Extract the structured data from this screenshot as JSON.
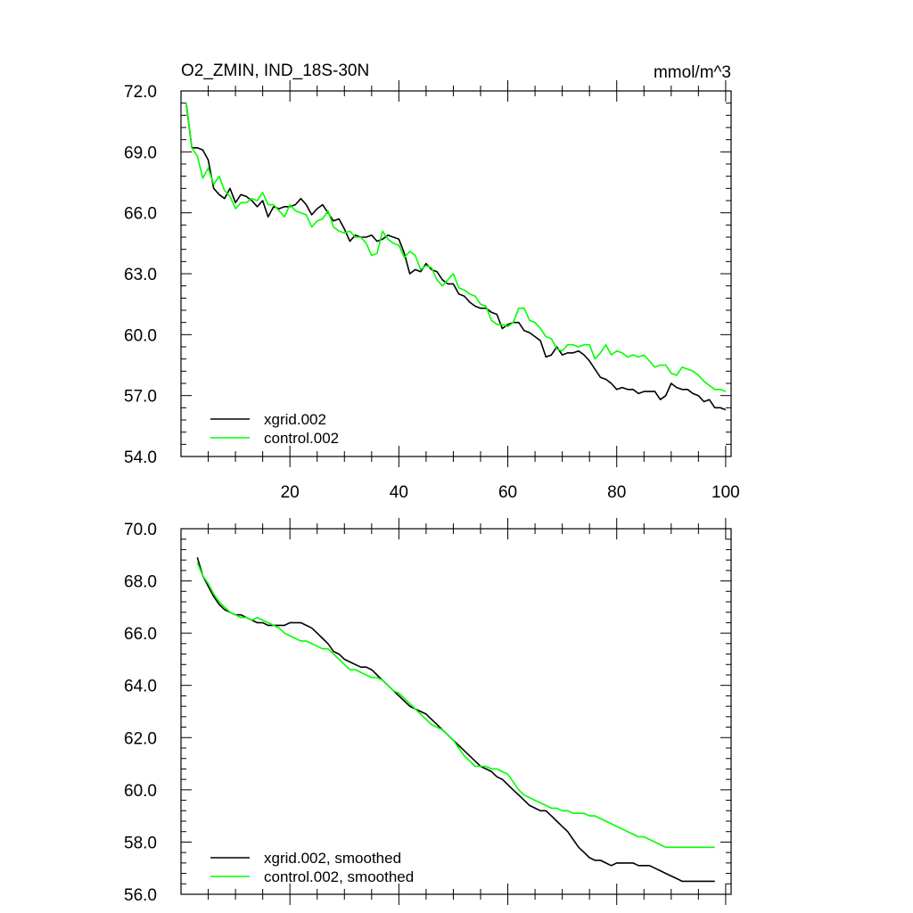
{
  "chart_data": [
    {
      "type": "line",
      "title": "O2_ZMIN, IND_18S-30N",
      "units": "mmol/m^3",
      "xlabel": "",
      "ylabel": "",
      "xlim": [
        0,
        101
      ],
      "ylim": [
        54.0,
        72.0
      ],
      "xticks": [
        20,
        40,
        60,
        80,
        100
      ],
      "xtick_labels": [
        "20",
        "40",
        "60",
        "80",
        "100"
      ],
      "yticks": [
        54,
        57,
        60,
        63,
        66,
        69,
        72
      ],
      "ytick_labels": [
        "54.0",
        "57.0",
        "60.0",
        "63.0",
        "66.0",
        "69.0",
        "72.0"
      ],
      "legend_position": "bottom-left",
      "grid": false,
      "series": [
        {
          "name": "xgrid.002",
          "color": "#000000",
          "x": [
            1,
            2,
            3,
            4,
            5,
            6,
            7,
            8,
            9,
            10,
            11,
            12,
            13,
            14,
            15,
            16,
            17,
            18,
            19,
            20,
            21,
            22,
            23,
            24,
            25,
            26,
            27,
            28,
            29,
            30,
            31,
            32,
            33,
            34,
            35,
            36,
            37,
            38,
            39,
            40,
            41,
            42,
            43,
            44,
            45,
            46,
            47,
            48,
            49,
            50,
            51,
            52,
            53,
            54,
            55,
            56,
            57,
            58,
            59,
            60,
            61,
            62,
            63,
            64,
            65,
            66,
            67,
            68,
            69,
            70,
            71,
            72,
            73,
            74,
            75,
            76,
            77,
            78,
            79,
            80,
            81,
            82,
            83,
            84,
            85,
            86,
            87,
            88,
            89,
            90,
            91,
            92,
            93,
            94,
            95,
            96,
            97,
            98,
            99,
            100
          ],
          "values": [
            71.3,
            69.2,
            69.2,
            69.1,
            68.6,
            67.2,
            66.9,
            66.7,
            67.2,
            66.5,
            66.9,
            66.8,
            66.6,
            66.3,
            66.6,
            65.8,
            66.3,
            66.2,
            66.3,
            66.3,
            66.4,
            66.7,
            66.4,
            65.9,
            66.2,
            66.4,
            66.0,
            65.6,
            65.7,
            65.2,
            64.6,
            64.9,
            64.8,
            64.8,
            64.9,
            64.6,
            64.7,
            64.9,
            64.8,
            64.7,
            64.0,
            63.0,
            63.2,
            63.1,
            63.5,
            63.2,
            63.1,
            62.7,
            62.5,
            62.5,
            62.0,
            61.9,
            61.6,
            61.4,
            61.3,
            61.3,
            61.1,
            61.0,
            60.3,
            60.5,
            60.6,
            60.6,
            60.2,
            60.1,
            59.9,
            59.7,
            58.9,
            59.0,
            59.4,
            59.0,
            59.1,
            59.1,
            59.2,
            59.0,
            58.7,
            58.3,
            57.9,
            57.8,
            57.6,
            57.3,
            57.4,
            57.3,
            57.3,
            57.1,
            57.2,
            57.2,
            57.2,
            56.8,
            57.0,
            57.6,
            57.4,
            57.3,
            57.3,
            57.1,
            57.0,
            56.7,
            56.8,
            56.4,
            56.4,
            56.3
          ]
        },
        {
          "name": "control.002",
          "color": "#00ff00",
          "x": [
            1,
            2,
            3,
            4,
            5,
            6,
            7,
            8,
            9,
            10,
            11,
            12,
            13,
            14,
            15,
            16,
            17,
            18,
            19,
            20,
            21,
            22,
            23,
            24,
            25,
            26,
            27,
            28,
            29,
            30,
            31,
            32,
            33,
            34,
            35,
            36,
            37,
            38,
            39,
            40,
            41,
            42,
            43,
            44,
            45,
            46,
            47,
            48,
            49,
            50,
            51,
            52,
            53,
            54,
            55,
            56,
            57,
            58,
            59,
            60,
            61,
            62,
            63,
            64,
            65,
            66,
            67,
            68,
            69,
            70,
            71,
            72,
            73,
            74,
            75,
            76,
            77,
            78,
            79,
            80,
            81,
            82,
            83,
            84,
            85,
            86,
            87,
            88,
            89,
            90,
            91,
            92,
            93,
            94,
            95,
            96,
            97,
            98,
            99,
            100
          ],
          "values": [
            71.4,
            69.2,
            68.8,
            67.7,
            68.2,
            67.4,
            67.8,
            67.1,
            66.8,
            66.2,
            66.5,
            66.5,
            66.7,
            66.6,
            67.0,
            66.4,
            66.4,
            66.1,
            65.8,
            66.4,
            66.1,
            66.0,
            65.9,
            65.3,
            65.6,
            65.7,
            66.1,
            65.3,
            65.1,
            65.0,
            65.1,
            64.8,
            64.8,
            64.5,
            63.9,
            64.0,
            65.1,
            64.7,
            64.5,
            64.4,
            63.8,
            64.1,
            63.9,
            63.2,
            63.4,
            63.3,
            62.7,
            62.4,
            62.7,
            63.0,
            62.3,
            62.2,
            62.0,
            61.9,
            61.5,
            61.4,
            60.7,
            60.5,
            60.5,
            60.4,
            60.6,
            61.3,
            61.3,
            60.7,
            60.6,
            60.3,
            59.9,
            59.8,
            59.3,
            59.2,
            59.5,
            59.5,
            59.4,
            59.5,
            59.5,
            58.8,
            59.1,
            59.5,
            59.0,
            59.2,
            59.1,
            58.9,
            59.0,
            58.9,
            59.0,
            58.7,
            58.4,
            58.5,
            58.5,
            58.1,
            58.0,
            58.4,
            58.3,
            58.2,
            58.0,
            57.7,
            57.5,
            57.3,
            57.3,
            57.2
          ]
        }
      ]
    },
    {
      "type": "line",
      "title": "",
      "xlabel": "",
      "ylabel": "",
      "xlim": [
        0,
        101
      ],
      "ylim": [
        56.0,
        70.0
      ],
      "xticks": [
        20,
        40,
        60,
        80,
        100
      ],
      "yticks": [
        56,
        58,
        60,
        62,
        64,
        66,
        68,
        70
      ],
      "ytick_labels": [
        "56.0",
        "58.0",
        "60.0",
        "62.0",
        "64.0",
        "66.0",
        "68.0",
        "70.0"
      ],
      "legend_position": "bottom-left",
      "grid": false,
      "series": [
        {
          "name": "xgrid.002, smoothed",
          "color": "#000000",
          "x": [
            3,
            4,
            5,
            6,
            7,
            8,
            9,
            10,
            11,
            12,
            13,
            14,
            15,
            16,
            17,
            18,
            19,
            20,
            21,
            22,
            23,
            24,
            25,
            26,
            27,
            28,
            29,
            30,
            31,
            32,
            33,
            34,
            35,
            36,
            37,
            38,
            39,
            40,
            41,
            42,
            43,
            44,
            45,
            46,
            47,
            48,
            49,
            50,
            51,
            52,
            53,
            54,
            55,
            56,
            57,
            58,
            59,
            60,
            61,
            62,
            63,
            64,
            65,
            66,
            67,
            68,
            69,
            70,
            71,
            72,
            73,
            74,
            75,
            76,
            77,
            78,
            79,
            80,
            81,
            82,
            83,
            84,
            85,
            86,
            87,
            88,
            89,
            90,
            91,
            92,
            93,
            94,
            95,
            96,
            97,
            98
          ],
          "values": [
            68.9,
            68.2,
            67.8,
            67.4,
            67.1,
            66.9,
            66.8,
            66.7,
            66.7,
            66.6,
            66.5,
            66.4,
            66.4,
            66.3,
            66.3,
            66.3,
            66.3,
            66.4,
            66.4,
            66.4,
            66.3,
            66.2,
            66.0,
            65.8,
            65.6,
            65.3,
            65.2,
            65.0,
            64.9,
            64.8,
            64.7,
            64.7,
            64.6,
            64.4,
            64.2,
            64.0,
            63.8,
            63.6,
            63.4,
            63.2,
            63.1,
            63.0,
            62.9,
            62.7,
            62.5,
            62.3,
            62.1,
            61.9,
            61.7,
            61.5,
            61.3,
            61.1,
            60.9,
            60.8,
            60.7,
            60.5,
            60.4,
            60.2,
            60.0,
            59.8,
            59.6,
            59.4,
            59.3,
            59.2,
            59.2,
            59.0,
            58.8,
            58.6,
            58.4,
            58.1,
            57.8,
            57.6,
            57.4,
            57.3,
            57.3,
            57.2,
            57.1,
            57.2,
            57.2,
            57.2,
            57.2,
            57.1,
            57.1,
            57.1,
            57.0,
            56.9,
            56.8,
            56.7,
            56.6,
            56.5,
            56.5,
            56.5,
            56.5,
            56.5,
            56.5,
            56.5
          ]
        },
        {
          "name": "control.002, smoothed",
          "color": "#00ff00",
          "x": [
            3,
            4,
            5,
            6,
            7,
            8,
            9,
            10,
            11,
            12,
            13,
            14,
            15,
            16,
            17,
            18,
            19,
            20,
            21,
            22,
            23,
            24,
            25,
            26,
            27,
            28,
            29,
            30,
            31,
            32,
            33,
            34,
            35,
            36,
            37,
            38,
            39,
            40,
            41,
            42,
            43,
            44,
            45,
            46,
            47,
            48,
            49,
            50,
            51,
            52,
            53,
            54,
            55,
            56,
            57,
            58,
            59,
            60,
            61,
            62,
            63,
            64,
            65,
            66,
            67,
            68,
            69,
            70,
            71,
            72,
            73,
            74,
            75,
            76,
            77,
            78,
            79,
            80,
            81,
            82,
            83,
            84,
            85,
            86,
            87,
            88,
            89,
            90,
            91,
            92,
            93,
            94,
            95,
            96,
            97,
            98
          ],
          "values": [
            68.7,
            68.2,
            67.9,
            67.5,
            67.2,
            67.0,
            66.8,
            66.7,
            66.6,
            66.6,
            66.5,
            66.6,
            66.5,
            66.4,
            66.3,
            66.2,
            66.0,
            65.9,
            65.8,
            65.7,
            65.7,
            65.6,
            65.5,
            65.4,
            65.4,
            65.2,
            65.0,
            64.8,
            64.6,
            64.6,
            64.5,
            64.4,
            64.3,
            64.3,
            64.2,
            64.0,
            63.8,
            63.7,
            63.5,
            63.3,
            63.1,
            62.9,
            62.7,
            62.5,
            62.4,
            62.3,
            62.1,
            61.9,
            61.6,
            61.3,
            61.1,
            60.9,
            60.9,
            60.9,
            60.8,
            60.8,
            60.7,
            60.6,
            60.3,
            60.0,
            59.8,
            59.7,
            59.6,
            59.5,
            59.4,
            59.3,
            59.3,
            59.2,
            59.2,
            59.1,
            59.1,
            59.1,
            59.0,
            59.0,
            58.9,
            58.8,
            58.7,
            58.6,
            58.5,
            58.4,
            58.3,
            58.2,
            58.2,
            58.1,
            58.0,
            57.9,
            57.8,
            57.8,
            57.8,
            57.8,
            57.8,
            57.8,
            57.8,
            57.8,
            57.8,
            57.8
          ]
        }
      ]
    }
  ]
}
